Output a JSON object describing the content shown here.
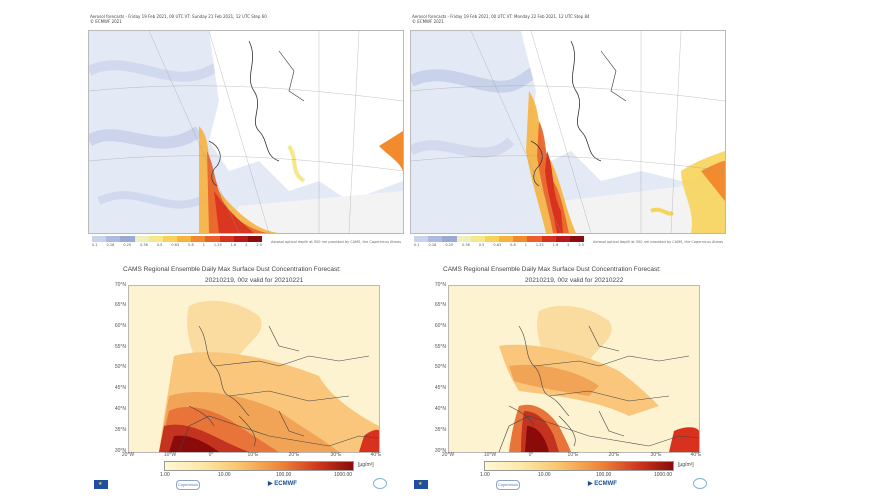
{
  "top_panels": [
    {
      "header_line1": "Aerosol forecasts - Friday 19 Feb 2021, 00 UTC VT: Sunday 21 Feb 2021, 12 UTC Step 60",
      "header_line2": "© ECMWF 2021",
      "colorbar_ticks": [
        "0.1",
        "0.18",
        "0.25",
        "0.36",
        "0.5",
        "0.63",
        "0.8",
        "1",
        "1.25",
        "1.6",
        "2",
        "2.5"
      ],
      "credit": "Aerosol optical depth at 550 nm provided by CAMS, the Copernicus Atmosphere Monitoring Service"
    },
    {
      "header_line1": "Aerosol forecasts - Friday 19 Feb 2021, 00 UTC VT: Monday 22 Feb 2021, 12 UTC Step 84",
      "header_line2": "© ECMWF 2021",
      "colorbar_ticks": [
        "0.1",
        "0.18",
        "0.25",
        "0.36",
        "0.5",
        "0.63",
        "0.8",
        "1",
        "1.25",
        "1.6",
        "2",
        "2.5"
      ],
      "credit": "Aerosol optical depth at 550 nm provided by CAMS, the Copernicus Atmosphere Monitoring Service"
    }
  ],
  "bottom_panels": [
    {
      "title": "CAMS Regional Ensemble Daily Max Surface Dust Concentration Forecast:",
      "subtitle": "20210219, 00z valid for 20210221",
      "lat_labels": [
        "70°N",
        "65°N",
        "60°N",
        "55°N",
        "50°N",
        "45°N",
        "40°N",
        "35°N",
        "30°N"
      ],
      "lon_labels": [
        "20°W",
        "10°W",
        "0°",
        "10°E",
        "20°E",
        "30°E",
        "40°E"
      ],
      "scale_ticks": [
        "1.00",
        "10.00",
        "100.00",
        "1000.00"
      ],
      "unit": "[µg/m³]",
      "logos": {
        "copernicus": "Copernicus",
        "ecmwf": "ECMWF"
      }
    },
    {
      "title": "CAMS Regional Ensemble Daily Max Surface Dust Concentration Forecast:",
      "subtitle": "20210219, 00z valid for 20210222",
      "lat_labels": [
        "70°N",
        "65°N",
        "60°N",
        "55°N",
        "50°N",
        "45°N",
        "40°N",
        "35°N",
        "30°N"
      ],
      "lon_labels": [
        "20°W",
        "10°W",
        "0°",
        "10°E",
        "20°E",
        "30°E",
        "40°E"
      ],
      "scale_ticks": [
        "1.00",
        "10.00",
        "100.00",
        "1000.00"
      ],
      "unit": "[µg/m³]",
      "logos": {
        "copernicus": "Copernicus",
        "ecmwf": "ECMWF"
      }
    }
  ],
  "colors": {
    "aod_scale": [
      "#c9d3ea",
      "#aebbe0",
      "#9aa9d6",
      "#eef0c0",
      "#f5e88a",
      "#f7d35b",
      "#f6b33f",
      "#f28b2d",
      "#e9602a",
      "#d8321f",
      "#b71a17",
      "#8c0d0d"
    ],
    "sea": "#e4e9f6",
    "land": "#ffffff",
    "dust_base": "#fde9b0"
  }
}
